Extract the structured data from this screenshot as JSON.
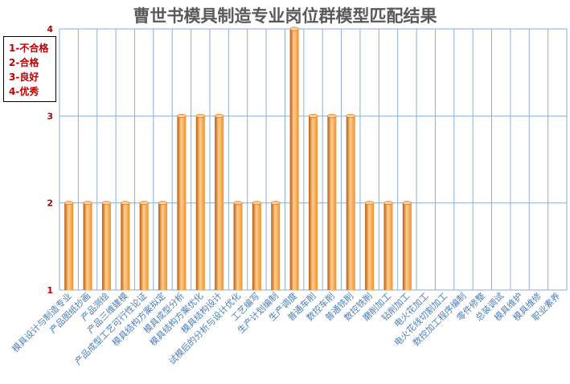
{
  "chart_data": {
    "type": "bar",
    "title": "曹世书模具制造专业岗位群模型匹配结果",
    "xlabel": "",
    "ylabel": "",
    "ylim": [
      1,
      4
    ],
    "yticks": [
      "1",
      "2",
      "3",
      "4"
    ],
    "grid": true,
    "legend": [
      "1-不合格",
      "2-合格",
      "3-良好",
      "4-优秀"
    ],
    "legend_position": "top-left",
    "categories": [
      "模具设计与制造专业",
      "产品图纸抄画",
      "产品测绘",
      "产品三维建模",
      "产品成型工艺可行性论证",
      "模具结构方案拟定",
      "模具成型分析",
      "模具结构方案优化",
      "模具结构设计",
      "试模后的分析与设计优化",
      "工艺编写",
      "生产计划编制",
      "生产调度",
      "普通车削",
      "数控车削",
      "普通铣削",
      "数控铣削",
      "磨削加工",
      "钻削加工",
      "电火花加工",
      "电火花线切割加工",
      "数控加工程序编制",
      "零件修整",
      "总装调试",
      "模具维护",
      "模具维修",
      "职业素养"
    ],
    "values": [
      2,
      2,
      2,
      2,
      2,
      2,
      3,
      3,
      3,
      2,
      2,
      2,
      4,
      3,
      3,
      3,
      2,
      2,
      2,
      null,
      null,
      null,
      null,
      null,
      null,
      null,
      null
    ],
    "colors": {
      "bar": "#f0902e",
      "bar_light": "#ffce8c",
      "bar_dark": "#b85a10",
      "grid": "#8eaed6",
      "tick": "#c00000",
      "category": "#4a7ebb"
    }
  }
}
